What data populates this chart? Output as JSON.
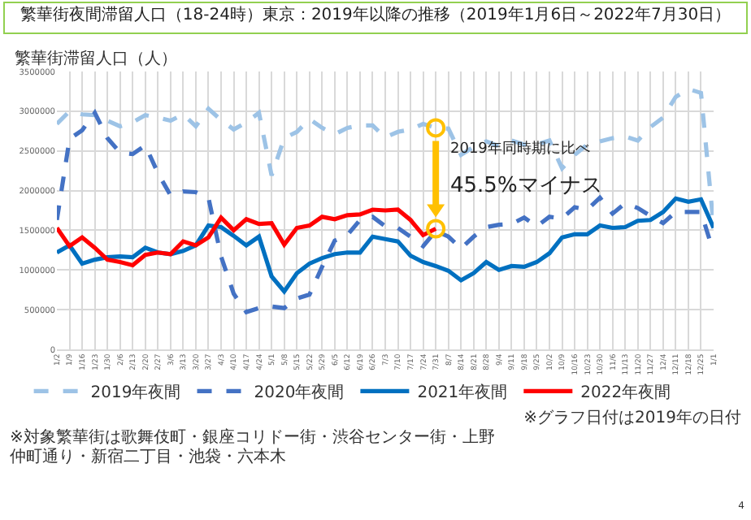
{
  "chart_data": {
    "type": "line",
    "title": "繁華街夜間滞留人口（18-24時）東京：2019年以降の推移（2019年1月6日～2022年7月30日）",
    "ylabel": "繁華街滞留人口（人）",
    "categories": [
      "1/2",
      "1/9",
      "1/16",
      "1/23",
      "1/30",
      "2/6",
      "2/13",
      "2/20",
      "2/27",
      "3/6",
      "3/13",
      "3/20",
      "3/27",
      "4/3",
      "4/10",
      "4/17",
      "4/24",
      "5/1",
      "5/8",
      "5/15",
      "5/22",
      "5/29",
      "6/5",
      "6/12",
      "6/19",
      "6/26",
      "7/3",
      "7/10",
      "7/17",
      "7/24",
      "7/31",
      "8/7",
      "8/14",
      "8/21",
      "8/28",
      "9/4",
      "9/11",
      "9/18",
      "9/25",
      "10/2",
      "10/9",
      "10/16",
      "10/23",
      "10/30",
      "11/6",
      "11/13",
      "11/20",
      "11/27",
      "12/4",
      "12/11",
      "12/18",
      "12/25",
      "1/1"
    ],
    "series": [
      {
        "name": "2019年夜間",
        "color": "#9dc3e6",
        "line_style": "dashed",
        "values": [
          2840000,
          3000000,
          2960000,
          2950000,
          2880000,
          2810000,
          2860000,
          2950000,
          2920000,
          2880000,
          2960000,
          2810000,
          3030000,
          2890000,
          2770000,
          2860000,
          2980000,
          2190000,
          2660000,
          2740000,
          2900000,
          2790000,
          2710000,
          2790000,
          2820000,
          2820000,
          2670000,
          2740000,
          2770000,
          2840000,
          2790000,
          2780000,
          2450000,
          2550000,
          2620000,
          2560000,
          2630000,
          2580000,
          2580000,
          2630000,
          2280000,
          2450000,
          2580000,
          2620000,
          2660000,
          2680000,
          2630000,
          2800000,
          2920000,
          3180000,
          3280000,
          3230000,
          1550000
        ]
      },
      {
        "name": "2020年夜間",
        "color": "#4472c4",
        "line_style": "dashed",
        "values": [
          1630000,
          2650000,
          2760000,
          2980000,
          2660000,
          2480000,
          2460000,
          2570000,
          2220000,
          1940000,
          1990000,
          1980000,
          1910000,
          1170000,
          700000,
          470000,
          520000,
          540000,
          520000,
          640000,
          690000,
          1040000,
          1370000,
          1440000,
          1630000,
          1670000,
          1550000,
          1530000,
          1420000,
          1300000,
          1490000,
          1420000,
          1270000,
          1420000,
          1540000,
          1570000,
          1580000,
          1660000,
          1550000,
          1670000,
          1650000,
          1790000,
          1760000,
          1910000,
          1710000,
          1840000,
          1780000,
          1680000,
          1590000,
          1730000,
          1730000,
          1730000,
          1220000
        ]
      },
      {
        "name": "2021年夜間",
        "color": "#0070c0",
        "line_style": "solid",
        "values": [
          1220000,
          1310000,
          1080000,
          1130000,
          1160000,
          1170000,
          1160000,
          1280000,
          1220000,
          1200000,
          1240000,
          1310000,
          1560000,
          1540000,
          1430000,
          1310000,
          1420000,
          920000,
          730000,
          960000,
          1080000,
          1150000,
          1200000,
          1220000,
          1220000,
          1420000,
          1390000,
          1360000,
          1180000,
          1100000,
          1050000,
          990000,
          870000,
          960000,
          1100000,
          1000000,
          1050000,
          1040000,
          1100000,
          1210000,
          1410000,
          1450000,
          1450000,
          1560000,
          1530000,
          1540000,
          1620000,
          1630000,
          1730000,
          1900000,
          1860000,
          1890000,
          1530000
        ]
      },
      {
        "name": "2022年夜間",
        "color": "#ff0000",
        "line_style": "solid",
        "values": [
          1530000,
          1300000,
          1410000,
          1280000,
          1130000,
          1100000,
          1060000,
          1190000,
          1220000,
          1200000,
          1360000,
          1310000,
          1410000,
          1660000,
          1500000,
          1640000,
          1580000,
          1590000,
          1320000,
          1530000,
          1560000,
          1670000,
          1640000,
          1690000,
          1700000,
          1760000,
          1750000,
          1760000,
          1630000,
          1440000,
          1520000,
          null,
          null,
          null,
          null,
          null,
          null,
          null,
          null,
          null,
          null,
          null,
          null,
          null,
          null,
          null,
          null,
          null,
          null,
          null,
          null,
          null,
          null
        ]
      }
    ],
    "ylim": [
      0,
      3500000
    ],
    "yticks": [
      0,
      500000,
      1000000,
      1500000,
      2000000,
      2500000,
      3000000,
      3500000
    ],
    "grid": true,
    "legend": "bottom",
    "marker": "none",
    "annotations": [
      "2019年同時期に比べ",
      {
        "text": "45.5%マイナス",
        "x": "7/31",
        "y": 1520000
      },
      "※グラフ日付は2019年の日付",
      "※対象繁華街は歌舞伎町・銀座コリドー街・渋谷センター街・上野仲町通り・新宿二丁目・池袋・六本木",
      "4"
    ]
  }
}
